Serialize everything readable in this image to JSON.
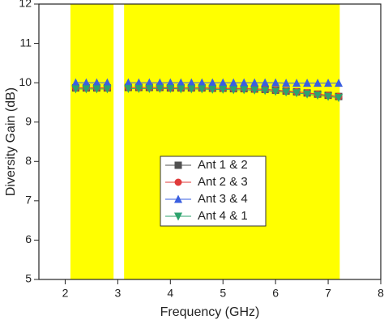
{
  "chart_data": {
    "type": "line",
    "xlabel": "Frequency (GHz)",
    "ylabel": "Diversity Gain (dB)",
    "xlim": [
      1.5,
      8
    ],
    "ylim": [
      5,
      12
    ],
    "xticks": [
      2,
      3,
      4,
      5,
      6,
      7,
      8
    ],
    "yticks": [
      5,
      6,
      7,
      8,
      9,
      10,
      11,
      12
    ],
    "bands": [
      [
        2.1,
        2.92
      ],
      [
        3.12,
        7.22
      ]
    ],
    "band_color": "#ffff00",
    "legend": "center",
    "x": [
      2.2,
      2.4,
      2.6,
      2.8,
      3.0,
      3.2,
      3.4,
      3.6,
      3.8,
      4.0,
      4.2,
      4.4,
      4.6,
      4.8,
      5.0,
      5.2,
      5.4,
      5.6,
      5.8,
      6.0,
      6.2,
      6.4,
      6.6,
      6.8,
      7.0,
      7.2
    ],
    "series": [
      {
        "name": "Ant 1 & 2",
        "color": "#505050",
        "marker": "square",
        "values": [
          9.87,
          9.87,
          9.87,
          9.87,
          null,
          9.88,
          9.88,
          9.88,
          9.88,
          9.87,
          9.87,
          9.87,
          9.87,
          9.86,
          9.86,
          9.85,
          9.85,
          9.84,
          9.83,
          9.81,
          9.79,
          9.77,
          9.74,
          9.71,
          9.68,
          9.65
        ]
      },
      {
        "name": "Ant 2 & 3",
        "color": "#e03a3a",
        "marker": "circle",
        "values": [
          9.87,
          9.87,
          9.87,
          9.87,
          null,
          9.88,
          9.88,
          9.88,
          9.88,
          9.87,
          9.87,
          9.87,
          9.87,
          9.86,
          9.86,
          9.85,
          9.85,
          9.84,
          9.83,
          9.81,
          9.79,
          9.77,
          9.74,
          9.71,
          9.68,
          9.65
        ]
      },
      {
        "name": "Ant 3 & 4",
        "color": "#3a5fe0",
        "marker": "triangle-up",
        "values": [
          10.0,
          10.0,
          10.0,
          10.0,
          null,
          10.0,
          10.0,
          10.0,
          10.0,
          10.0,
          10.0,
          10.0,
          10.0,
          10.0,
          10.0,
          10.0,
          10.0,
          10.0,
          10.0,
          10.0,
          9.99,
          9.99,
          9.99,
          9.99,
          9.99,
          9.99
        ]
      },
      {
        "name": "Ant 4 & 1",
        "color": "#2ea36e",
        "marker": "triangle-down",
        "values": [
          9.84,
          9.84,
          9.84,
          9.84,
          null,
          9.85,
          9.85,
          9.85,
          9.85,
          9.85,
          9.84,
          9.84,
          9.84,
          9.83,
          9.83,
          9.82,
          9.82,
          9.81,
          9.8,
          9.78,
          9.76,
          9.74,
          9.71,
          9.68,
          9.65,
          9.62
        ]
      }
    ]
  }
}
